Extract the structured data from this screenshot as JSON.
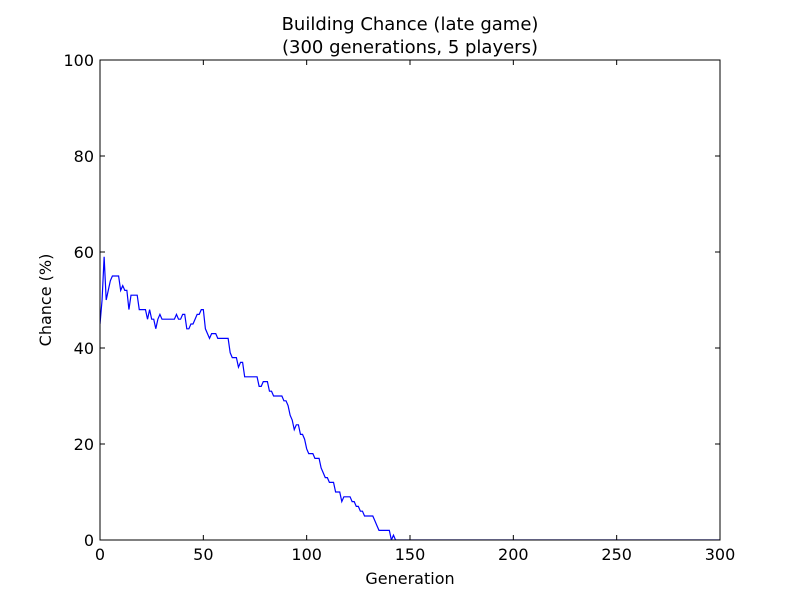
{
  "chart_data": {
    "type": "line",
    "title": "Building Chance (late game)",
    "subtitle": "(300 generations, 5 players)",
    "xlabel": "Generation",
    "ylabel": "Chance (%)",
    "xlim": [
      0,
      300
    ],
    "ylim": [
      0,
      100
    ],
    "grid": false,
    "x_ticks": [
      0,
      50,
      100,
      150,
      200,
      250,
      300
    ],
    "y_ticks": [
      0,
      20,
      40,
      60,
      80,
      100
    ],
    "line_color": "#0000ff",
    "series": [
      {
        "points": [
          [
            0,
            45
          ],
          [
            1,
            50
          ],
          [
            2,
            59
          ],
          [
            3,
            50
          ],
          [
            4,
            52
          ],
          [
            5,
            54
          ],
          [
            6,
            55
          ],
          [
            7,
            55
          ],
          [
            8,
            55
          ],
          [
            9,
            55
          ],
          [
            10,
            52
          ],
          [
            11,
            53
          ],
          [
            12,
            52
          ],
          [
            13,
            52
          ],
          [
            14,
            48
          ],
          [
            15,
            51
          ],
          [
            16,
            51
          ],
          [
            17,
            51
          ],
          [
            18,
            51
          ],
          [
            19,
            48
          ],
          [
            20,
            48
          ],
          [
            21,
            48
          ],
          [
            22,
            48
          ],
          [
            23,
            46
          ],
          [
            24,
            48
          ],
          [
            25,
            46
          ],
          [
            26,
            46
          ],
          [
            27,
            44
          ],
          [
            28,
            46
          ],
          [
            29,
            47
          ],
          [
            30,
            46
          ],
          [
            31,
            46
          ],
          [
            32,
            46
          ],
          [
            33,
            46
          ],
          [
            34,
            46
          ],
          [
            35,
            46
          ],
          [
            36,
            46
          ],
          [
            37,
            47
          ],
          [
            38,
            46
          ],
          [
            39,
            46
          ],
          [
            40,
            47
          ],
          [
            41,
            47
          ],
          [
            42,
            44
          ],
          [
            43,
            44
          ],
          [
            44,
            45
          ],
          [
            45,
            45
          ],
          [
            46,
            46
          ],
          [
            47,
            47
          ],
          [
            48,
            47
          ],
          [
            49,
            48
          ],
          [
            50,
            48
          ],
          [
            51,
            44
          ],
          [
            52,
            43
          ],
          [
            53,
            42
          ],
          [
            54,
            43
          ],
          [
            55,
            43
          ],
          [
            56,
            43
          ],
          [
            57,
            42
          ],
          [
            58,
            42
          ],
          [
            59,
            42
          ],
          [
            60,
            42
          ],
          [
            61,
            42
          ],
          [
            62,
            42
          ],
          [
            63,
            39
          ],
          [
            64,
            38
          ],
          [
            65,
            38
          ],
          [
            66,
            38
          ],
          [
            67,
            36
          ],
          [
            68,
            37
          ],
          [
            69,
            37
          ],
          [
            70,
            34
          ],
          [
            71,
            34
          ],
          [
            72,
            34
          ],
          [
            73,
            34
          ],
          [
            74,
            34
          ],
          [
            75,
            34
          ],
          [
            76,
            34
          ],
          [
            77,
            32
          ],
          [
            78,
            32
          ],
          [
            79,
            33
          ],
          [
            80,
            33
          ],
          [
            81,
            33
          ],
          [
            82,
            31
          ],
          [
            83,
            31
          ],
          [
            84,
            30
          ],
          [
            85,
            30
          ],
          [
            86,
            30
          ],
          [
            87,
            30
          ],
          [
            88,
            30
          ],
          [
            89,
            29
          ],
          [
            90,
            29
          ],
          [
            91,
            28
          ],
          [
            92,
            26
          ],
          [
            93,
            25
          ],
          [
            94,
            23
          ],
          [
            95,
            24
          ],
          [
            96,
            24
          ],
          [
            97,
            22
          ],
          [
            98,
            22
          ],
          [
            99,
            21
          ],
          [
            100,
            19
          ],
          [
            101,
            18
          ],
          [
            102,
            18
          ],
          [
            103,
            18
          ],
          [
            104,
            17
          ],
          [
            105,
            17
          ],
          [
            106,
            17
          ],
          [
            107,
            15
          ],
          [
            108,
            14
          ],
          [
            109,
            13
          ],
          [
            110,
            13
          ],
          [
            111,
            12
          ],
          [
            112,
            12
          ],
          [
            113,
            12
          ],
          [
            114,
            10
          ],
          [
            115,
            10
          ],
          [
            116,
            10
          ],
          [
            117,
            8
          ],
          [
            118,
            9
          ],
          [
            119,
            9
          ],
          [
            120,
            9
          ],
          [
            121,
            9
          ],
          [
            122,
            8
          ],
          [
            123,
            8
          ],
          [
            124,
            7
          ],
          [
            125,
            7
          ],
          [
            126,
            6
          ],
          [
            127,
            6
          ],
          [
            128,
            5
          ],
          [
            129,
            5
          ],
          [
            130,
            5
          ],
          [
            131,
            5
          ],
          [
            132,
            5
          ],
          [
            133,
            4
          ],
          [
            134,
            3
          ],
          [
            135,
            2
          ],
          [
            136,
            2
          ],
          [
            137,
            2
          ],
          [
            138,
            2
          ],
          [
            139,
            2
          ],
          [
            140,
            2
          ],
          [
            141,
            0
          ],
          [
            142,
            1
          ],
          [
            143,
            0
          ],
          [
            144,
            0
          ],
          [
            145,
            0
          ],
          [
            150,
            0
          ],
          [
            200,
            0
          ],
          [
            250,
            0
          ],
          [
            300,
            0
          ]
        ]
      }
    ]
  }
}
